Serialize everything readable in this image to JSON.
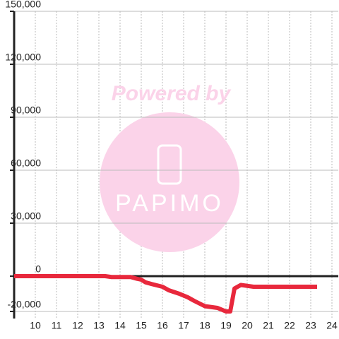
{
  "chart_data": {
    "type": "line",
    "watermark": {
      "title": "Powered by",
      "brand": "PAPIMO"
    },
    "x": [
      9,
      13.3,
      13.6,
      14.5,
      14.8,
      15.0,
      15.2,
      15.5,
      16.0,
      16.3,
      16.8,
      17.2,
      17.5,
      18.0,
      18.3,
      18.6,
      19.0,
      19.2,
      19.4,
      19.7,
      20.0,
      20.3,
      23.3
    ],
    "series": [
      {
        "color": "#e8283c",
        "values": [
          0,
          0,
          -500,
          -500,
          -1500,
          -2000,
          -3500,
          -4500,
          -6000,
          -8000,
          -10000,
          -12000,
          -14000,
          -17000,
          -17500,
          -18000,
          -20000,
          -20000,
          -7000,
          -5000,
          -5500,
          -6000,
          -6000
        ]
      }
    ],
    "xlim": [
      9,
      24.3
    ],
    "xticks": [
      10,
      11,
      12,
      13,
      14,
      15,
      16,
      17,
      18,
      19,
      20,
      21,
      22,
      23,
      24
    ],
    "ylim": [
      -24000,
      150000
    ],
    "yticks": [
      {
        "value": -20000,
        "label": "-20,000"
      },
      0,
      {
        "value": 30000,
        "label": "30,000"
      },
      {
        "value": 60000,
        "label": "60,000"
      },
      {
        "value": 90000,
        "label": "90,000"
      },
      {
        "value": 120000,
        "label": "120,000"
      },
      {
        "value": 150000,
        "label": "150,000"
      }
    ],
    "grid": true
  }
}
